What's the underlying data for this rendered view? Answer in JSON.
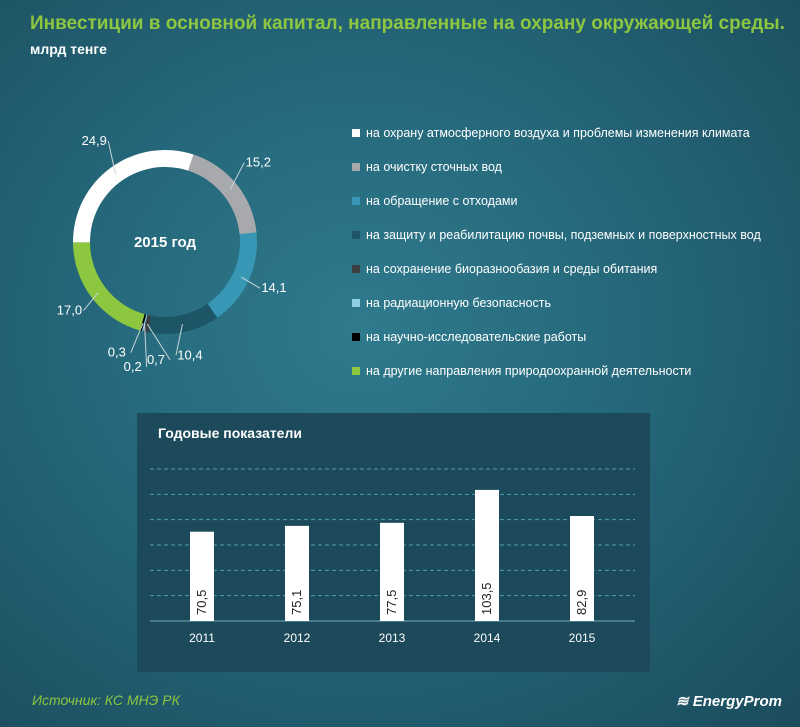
{
  "title": "Инвестиции в основной капитал, направленные на охрану окружающей среды.",
  "unit": "млрд тенге",
  "source": "Источник: КС МНЭ РК",
  "logo": "EnergyProm",
  "chart_data": [
    {
      "type": "pie",
      "title": "2015 год",
      "slices": [
        {
          "label": "на очистку сточных вод",
          "value": 15.2,
          "text": "15,2",
          "color": "#a7a9ac"
        },
        {
          "label": "на обращение с отходами",
          "value": 14.1,
          "text": "14,1",
          "color": "#3797b5"
        },
        {
          "label": "на защиту и реабилитацию почвы, подземных и поверхностных вод",
          "value": 10.4,
          "text": "10,4",
          "color": "#1d5566"
        },
        {
          "label": "на сохранение биоразнообазия и среды обитания",
          "value": 0.7,
          "text": "0,7",
          "color": "#3a3f42"
        },
        {
          "label": "на радиационную безопасность",
          "value": 0.2,
          "text": "0,2",
          "color": "#8fd0e6"
        },
        {
          "label": "на научно-исследовательские работы",
          "value": 0.3,
          "text": "0,3",
          "color": "#000000"
        },
        {
          "label": "на другие направления природоохранной деятельности",
          "value": 17.0,
          "text": "17,0",
          "color": "#8dc63f"
        },
        {
          "label": "на охрану атмосферного воздуха и проблемы изменения климата",
          "value": 24.9,
          "text": "24,9",
          "color": "#ffffff"
        }
      ],
      "legend": [
        {
          "label": "на охрану атмосферного воздуха и проблемы изменения климата",
          "color": "#ffffff"
        },
        {
          "label": "на очистку сточных вод",
          "color": "#a7a9ac"
        },
        {
          "label": "на обращение с отходами",
          "color": "#3797b5"
        },
        {
          "label": "на защиту и реабилитацию почвы, подземных и поверхностных вод",
          "color": "#1d5566"
        },
        {
          "label": "на сохранение биоразнообазия и среды обитания",
          "color": "#3a3f42"
        },
        {
          "label": "на радиационную безопасность",
          "color": "#8fd0e6"
        },
        {
          "label": "на научно-исследовательские работы",
          "color": "#000000"
        },
        {
          "label": "на другие направления природоохранной деятельности",
          "color": "#8dc63f"
        }
      ]
    },
    {
      "type": "bar",
      "title": "Годовые показатели",
      "categories": [
        "2011",
        "2012",
        "2013",
        "2014",
        "2015"
      ],
      "values": [
        70.5,
        75.1,
        77.5,
        103.5,
        82.9
      ],
      "labels": [
        "70,5",
        "75,1",
        "77,5",
        "103,5",
        "82,9"
      ],
      "ylim": [
        0,
        120
      ],
      "grid": true,
      "grid_step": 20
    }
  ]
}
